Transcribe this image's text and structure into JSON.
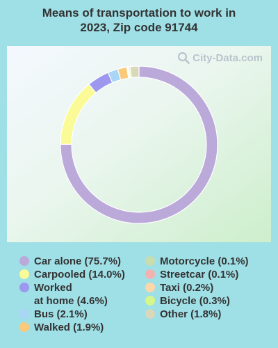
{
  "title": "Means of transportation to work in 2023, Zip code 91744",
  "watermark": "City-Data.com",
  "chart_data": {
    "type": "pie",
    "subtype": "donut",
    "title": "Means of transportation to work in 2023, Zip code 91744",
    "series": [
      {
        "name": "Car alone",
        "value": 75.7,
        "label": "Car alone (75.7%)",
        "color": "#bba9da"
      },
      {
        "name": "Carpooled",
        "value": 14.0,
        "label": "Carpooled (14.0%)",
        "color": "#fafa96"
      },
      {
        "name": "Worked at home",
        "value": 4.6,
        "label": "Worked\nat home (4.6%)",
        "color": "#9b98ee"
      },
      {
        "name": "Bus",
        "value": 2.1,
        "label": "Bus (2.1%)",
        "color": "#a9d6f5"
      },
      {
        "name": "Walked",
        "value": 1.9,
        "label": "Walked (1.9%)",
        "color": "#fac97a"
      },
      {
        "name": "Motorcycle",
        "value": 0.1,
        "label": "Motorcycle (0.1%)",
        "color": "#c9dcae"
      },
      {
        "name": "Streetcar",
        "value": 0.1,
        "label": "Streetcar (0.1%)",
        "color": "#f2b3b0"
      },
      {
        "name": "Taxi",
        "value": 0.2,
        "label": "Taxi (0.2%)",
        "color": "#fdd6aa"
      },
      {
        "name": "Bicycle",
        "value": 0.3,
        "label": "Bicycle (0.3%)",
        "color": "#d6f58a"
      },
      {
        "name": "Other",
        "value": 1.8,
        "label": "Other (1.8%)",
        "color": "#d8d8bb"
      }
    ],
    "slice_order": [
      "Car alone",
      "Carpooled",
      "Worked at home",
      "Bus",
      "Walked",
      "Motorcycle",
      "Streetcar",
      "Taxi",
      "Bicycle",
      "Other"
    ],
    "legend": {
      "placement": "bottom",
      "columns": [
        [
          "Car alone",
          "Carpooled",
          "Worked at home",
          "Bus",
          "Walked"
        ],
        [
          "Motorcycle",
          "Streetcar",
          "Taxi",
          "Bicycle",
          "Other"
        ]
      ]
    }
  }
}
